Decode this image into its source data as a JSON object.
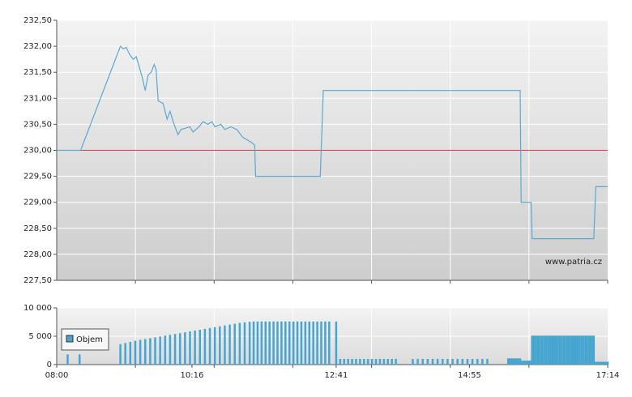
{
  "chart_data": [
    {
      "type": "line",
      "x": [
        "08:00",
        "08:24",
        "09:04",
        "09:07",
        "09:10",
        "09:13",
        "09:17",
        "09:20",
        "09:23",
        "09:26",
        "09:29",
        "09:32",
        "09:35",
        "09:38",
        "09:40",
        "09:42",
        "09:47",
        "09:51",
        "09:54",
        "09:58",
        "10:02",
        "10:05",
        "10:14",
        "10:17",
        "10:23",
        "10:27",
        "10:32",
        "10:36",
        "10:39",
        "10:45",
        "10:49",
        "10:55",
        "11:01",
        "11:07",
        "11:16",
        "11:19",
        "11:20",
        "12:25",
        "12:28",
        "15:46",
        "15:47",
        "15:57",
        "15:58",
        "17:00",
        "17:02",
        "17:14"
      ],
      "series": [
        {
          "color": "#5aa9d2",
          "values": [
            230.0,
            230.0,
            232.0,
            231.95,
            231.98,
            231.85,
            231.75,
            231.8,
            231.6,
            231.4,
            231.15,
            231.45,
            231.5,
            231.65,
            231.55,
            230.95,
            230.9,
            230.6,
            230.75,
            230.5,
            230.3,
            230.4,
            230.45,
            230.35,
            230.45,
            230.55,
            230.5,
            230.55,
            230.45,
            230.5,
            230.4,
            230.45,
            230.4,
            230.25,
            230.15,
            230.1,
            229.5,
            229.5,
            231.15,
            231.15,
            229.0,
            229.0,
            228.3,
            228.3,
            229.3,
            229.3
          ]
        }
      ],
      "reference_line": 230.0,
      "reference_color": "#e03a3a",
      "xlim": [
        "08:00",
        "17:14"
      ],
      "ylim": [
        227.5,
        232.5
      ],
      "yticks": [
        {
          "value": 227.5,
          "label": "227,50"
        },
        {
          "value": 228,
          "label": "228,00"
        },
        {
          "value": 228.5,
          "label": "228,50"
        },
        {
          "value": 229,
          "label": "229,00"
        },
        {
          "value": 229.5,
          "label": "229,50"
        },
        {
          "value": 230,
          "label": "230,00"
        },
        {
          "value": 230.5,
          "label": "230,50"
        },
        {
          "value": 231,
          "label": "231,00"
        },
        {
          "value": 231.5,
          "label": "231,50"
        },
        {
          "value": 232,
          "label": "232,00"
        },
        {
          "value": 232.5,
          "label": "232,50"
        }
      ],
      "grid": true,
      "source_label": "www.patria.cz"
    },
    {
      "type": "bar",
      "x": [
        "08:11",
        "08:23",
        "09:04",
        "09:09",
        "09:14",
        "09:19",
        "09:24",
        "09:29",
        "09:34",
        "09:39",
        "09:44",
        "09:49",
        "09:54",
        "09:59",
        "10:04",
        "10:09",
        "10:14",
        "10:19",
        "10:24",
        "10:29",
        "10:34",
        "10:39",
        "10:44",
        "10:49",
        "10:54",
        "10:59",
        "11:04",
        "11:09",
        "11:14",
        "11:18",
        "11:22",
        "11:26",
        "11:30",
        "11:34",
        "11:38",
        "11:42",
        "11:46",
        "11:50",
        "11:54",
        "11:58",
        "12:02",
        "12:06",
        "12:10",
        "12:14",
        "12:18",
        "12:22",
        "12:26",
        "12:30",
        "12:34",
        "12:41",
        "12:45",
        "12:49",
        "12:53",
        "12:57",
        "13:01",
        "13:05",
        "13:09",
        "13:13",
        "13:17",
        "13:21",
        "13:25",
        "13:29",
        "13:33",
        "13:37",
        "13:41",
        "13:58",
        "14:03",
        "14:08",
        "14:13",
        "14:18",
        "14:23",
        "14:28",
        "14:33",
        "14:38",
        "14:43",
        "14:48",
        "14:53",
        "14:58",
        "15:03",
        "15:08",
        "15:13",
        "15:34",
        "15:36",
        "15:38",
        "15:40",
        "15:42",
        "15:44",
        "15:46",
        "15:48",
        "15:50",
        "15:52",
        "15:54",
        "15:56",
        "15:58",
        "16:00",
        "16:02",
        "16:04",
        "16:06",
        "16:08",
        "16:10",
        "16:12",
        "16:14",
        "16:16",
        "16:18",
        "16:20",
        "16:22",
        "16:24",
        "16:26",
        "16:28",
        "16:30",
        "16:32",
        "16:34",
        "16:36",
        "16:38",
        "16:40",
        "16:42",
        "16:44",
        "16:46",
        "16:48",
        "16:50",
        "16:52",
        "16:54",
        "16:56",
        "16:58",
        "17:00",
        "17:02",
        "17:04",
        "17:06",
        "17:08",
        "17:10",
        "17:12",
        "17:14"
      ],
      "series": [
        {
          "name": "Objem",
          "color": "#46a5d0",
          "values": [
            1800,
            1800,
            3600,
            3800,
            4000,
            4200,
            4350,
            4500,
            4650,
            4800,
            4950,
            5100,
            5250,
            5400,
            5550,
            5700,
            5850,
            6000,
            6150,
            6300,
            6450,
            6600,
            6750,
            6900,
            7050,
            7200,
            7350,
            7450,
            7550,
            7600,
            7600,
            7600,
            7600,
            7600,
            7600,
            7600,
            7600,
            7600,
            7600,
            7600,
            7600,
            7600,
            7600,
            7600,
            7600,
            7600,
            7600,
            7600,
            7600,
            7600,
            1000,
            1000,
            1000,
            1000,
            1000,
            1000,
            1000,
            1000,
            1000,
            1000,
            1000,
            1000,
            1000,
            1000,
            1000,
            1000,
            1000,
            1000,
            1000,
            1000,
            1000,
            1000,
            1000,
            1000,
            1000,
            1000,
            1000,
            1000,
            1000,
            1000,
            1000,
            1100,
            1100,
            1100,
            1100,
            1100,
            1100,
            1100,
            700,
            700,
            700,
            700,
            700,
            5100,
            5100,
            5100,
            5100,
            5100,
            5100,
            5100,
            5100,
            5100,
            5100,
            5100,
            5100,
            5100,
            5100,
            5100,
            5100,
            5100,
            5100,
            5100,
            5100,
            5100,
            5100,
            5100,
            5100,
            5100,
            5100,
            5100,
            5100,
            5100,
            5100,
            5100,
            5100,
            500,
            500,
            500,
            500,
            500,
            500,
            500
          ]
        }
      ],
      "xlim": [
        "08:00",
        "17:14"
      ],
      "xticks": [
        "08:00",
        "10:16",
        "12:41",
        "14:55",
        "17:14"
      ],
      "ylim": [
        0,
        10000
      ],
      "yticks": [
        0,
        {
          "value": 5000,
          "label": "5 000"
        },
        {
          "value": 10000,
          "label": "10 000"
        }
      ],
      "grid": true
    }
  ]
}
